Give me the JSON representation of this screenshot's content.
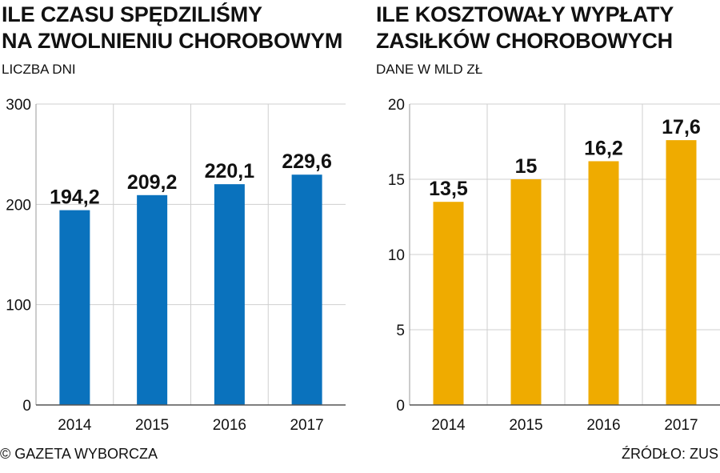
{
  "charts": [
    {
      "title_line1": "ILE CZASU SPĘDZILIŚMY",
      "title_line2": "NA ZWOLNIENIU CHOROBOWYM",
      "subtitle": "LICZBA DNI",
      "bar_color": "#0a72bd"
    },
    {
      "title_line1": "ILE KOSZTOWAŁY WYPŁATY",
      "title_line2": "ZASIŁKÓW CHOROBOWYCH",
      "subtitle": "DANE W MLD ZŁ",
      "bar_color": "#efab00"
    }
  ],
  "chart_data": [
    {
      "type": "bar",
      "title": "ILE CZASU SPĘDZILIŚMY NA ZWOLNIENIU CHOROBOWYM",
      "subtitle": "LICZBA DNI",
      "categories": [
        "2014",
        "2015",
        "2016",
        "2017"
      ],
      "values": [
        194.2,
        209.2,
        220.1,
        229.6
      ],
      "value_labels": [
        "194,2",
        "209,2",
        "220,1",
        "229,6"
      ],
      "ylim": [
        0,
        300
      ],
      "yticks": [
        0,
        100,
        200,
        300
      ],
      "grid": true
    },
    {
      "type": "bar",
      "title": "ILE KOSZTOWAŁY WYPŁATY ZASIŁKÓW CHOROBOWYCH",
      "subtitle": "DANE W MLD ZŁ",
      "categories": [
        "2014",
        "2015",
        "2016",
        "2017"
      ],
      "values": [
        13.5,
        15,
        16.2,
        17.6
      ],
      "value_labels": [
        "13,5",
        "15",
        "16,2",
        "17,6"
      ],
      "ylim": [
        0,
        20
      ],
      "yticks": [
        0,
        5,
        10,
        15,
        20
      ],
      "grid": true
    }
  ],
  "footer": {
    "copyright": "© GAZETA WYBORCZA",
    "source": "ŹRÓDŁO: ZUS"
  }
}
